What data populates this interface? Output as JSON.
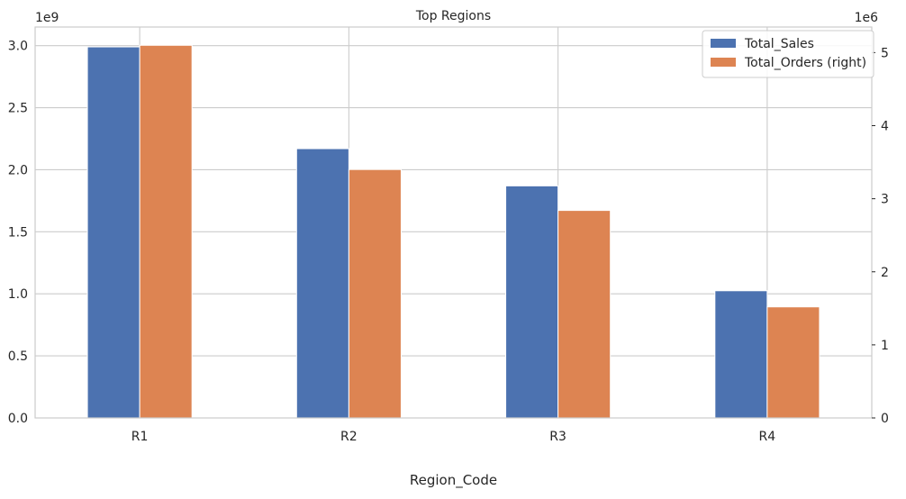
{
  "chart_data": {
    "type": "bar",
    "title": "Top Regions",
    "xlabel": "Region_Code",
    "ylabel": "",
    "ylabel_right": "",
    "categories": [
      "R1",
      "R2",
      "R3",
      "R4"
    ],
    "series": [
      {
        "name": "Total_Sales",
        "axis": "left",
        "color": "#4c72b0",
        "values": [
          2990000000,
          2170000000,
          1870000000,
          1025000000
        ]
      },
      {
        "name": "Total_Orders (right)",
        "axis": "right",
        "color": "#dd8452",
        "values": [
          5100000,
          3400000,
          2840000,
          1520000
        ]
      }
    ],
    "ylim": [
      0,
      3150000000
    ],
    "ylim_right": [
      0,
      5350000
    ],
    "yticks": [
      0,
      500000000,
      1000000000,
      1500000000,
      2000000000,
      2500000000,
      3000000000
    ],
    "ytick_labels": [
      "0.0",
      "0.5",
      "1.0",
      "1.5",
      "2.0",
      "2.5",
      "3.0"
    ],
    "ytick_right": [
      0,
      1000000,
      2000000,
      3000000,
      4000000,
      5000000
    ],
    "ytick_right_labels": [
      "0",
      "1",
      "2",
      "3",
      "4",
      "5"
    ],
    "left_offset_label": "1e9",
    "right_offset_label": "1e6",
    "grid": true,
    "legend_position": "top-right"
  }
}
